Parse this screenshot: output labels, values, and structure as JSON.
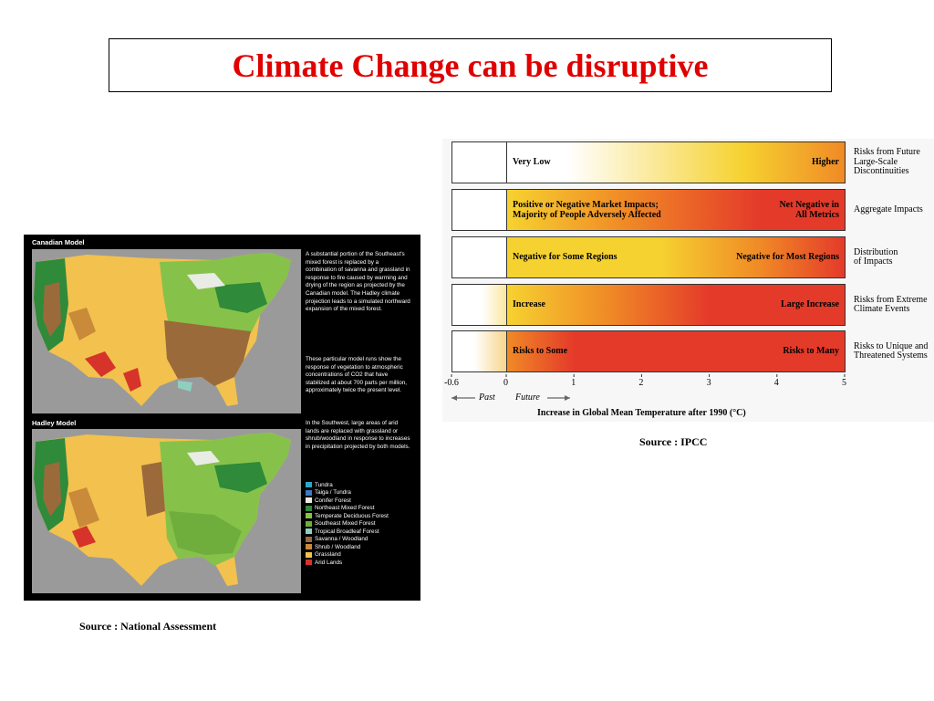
{
  "slide": {
    "title": "Climate Change can be disruptive"
  },
  "maps": {
    "models": [
      {
        "label": "Canadian Model"
      },
      {
        "label": "Hadley Model"
      }
    ],
    "text": [
      "A substantial portion of the Southeast's mixed forest is replaced by a combination of savanna and grassland in response to fire caused by warming and drying of the region as projected by the Canadian model. The Hadley climate projection leads to a simulated northward expansion of the mixed forest.",
      "These particular model runs show the response of vegetation to atmospheric concentrations of CO2 that have stabilized at about 700 parts per million, approximately twice the present level.",
      "In the Southwest, large areas of arid lands are replaced with grassland or shrub/woodland in response to increases in precipitation projected by both models."
    ],
    "legend": [
      {
        "label": "Tundra",
        "color": "#2aa7c9"
      },
      {
        "label": "Taiga / Tundra",
        "color": "#3f79c4"
      },
      {
        "label": "Conifer Forest",
        "color": "#e9ece4"
      },
      {
        "label": "Northeast Mixed Forest",
        "color": "#2f8a3a"
      },
      {
        "label": "Temperate Deciduous Forest",
        "color": "#86c24a"
      },
      {
        "label": "Southeast Mixed Forest",
        "color": "#6fae3c"
      },
      {
        "label": "Tropical Broadleaf Forest",
        "color": "#8fcfc0"
      },
      {
        "label": "Savanna / Woodland",
        "color": "#9b6a3a"
      },
      {
        "label": "Shrub / Woodland",
        "color": "#c98a3a"
      },
      {
        "label": "Grassland",
        "color": "#f2c14e"
      },
      {
        "label": "Arid Lands",
        "color": "#d6332a"
      }
    ],
    "source": "Source : National Assessment"
  },
  "ipcc": {
    "rows": [
      {
        "left": "Very Low",
        "right": "Higher",
        "category": "Risks from Future\nLarge-Scale\nDiscontinuities"
      },
      {
        "left": "Positive or Negative Market Impacts;\nMajority of People Adversely Affected",
        "right": "Net Negative in\nAll Metrics",
        "category": "Aggregate Impacts"
      },
      {
        "left": "Negative for Some Regions",
        "right": "Negative for Most Regions",
        "category": "Distribution\nof Impacts"
      },
      {
        "left": "Increase",
        "right": "Large Increase",
        "category": "Risks from Extreme\nClimate Events"
      },
      {
        "left": "Risks to Some",
        "right": "Risks to Many",
        "category": "Risks to Unique and\nThreatened Systems"
      }
    ],
    "ticks": [
      "-0.6",
      "0",
      "1",
      "2",
      "3",
      "4",
      "5"
    ],
    "past_label": "Past",
    "future_label": "Future",
    "axis_title": "Increase in Global Mean Temperature after 1990 (°C)",
    "source": "Source : IPCC",
    "colors": {
      "white": "#ffffff",
      "yellow": "#f6d230",
      "orange": "#f08a26",
      "red": "#e43a2a"
    }
  }
}
